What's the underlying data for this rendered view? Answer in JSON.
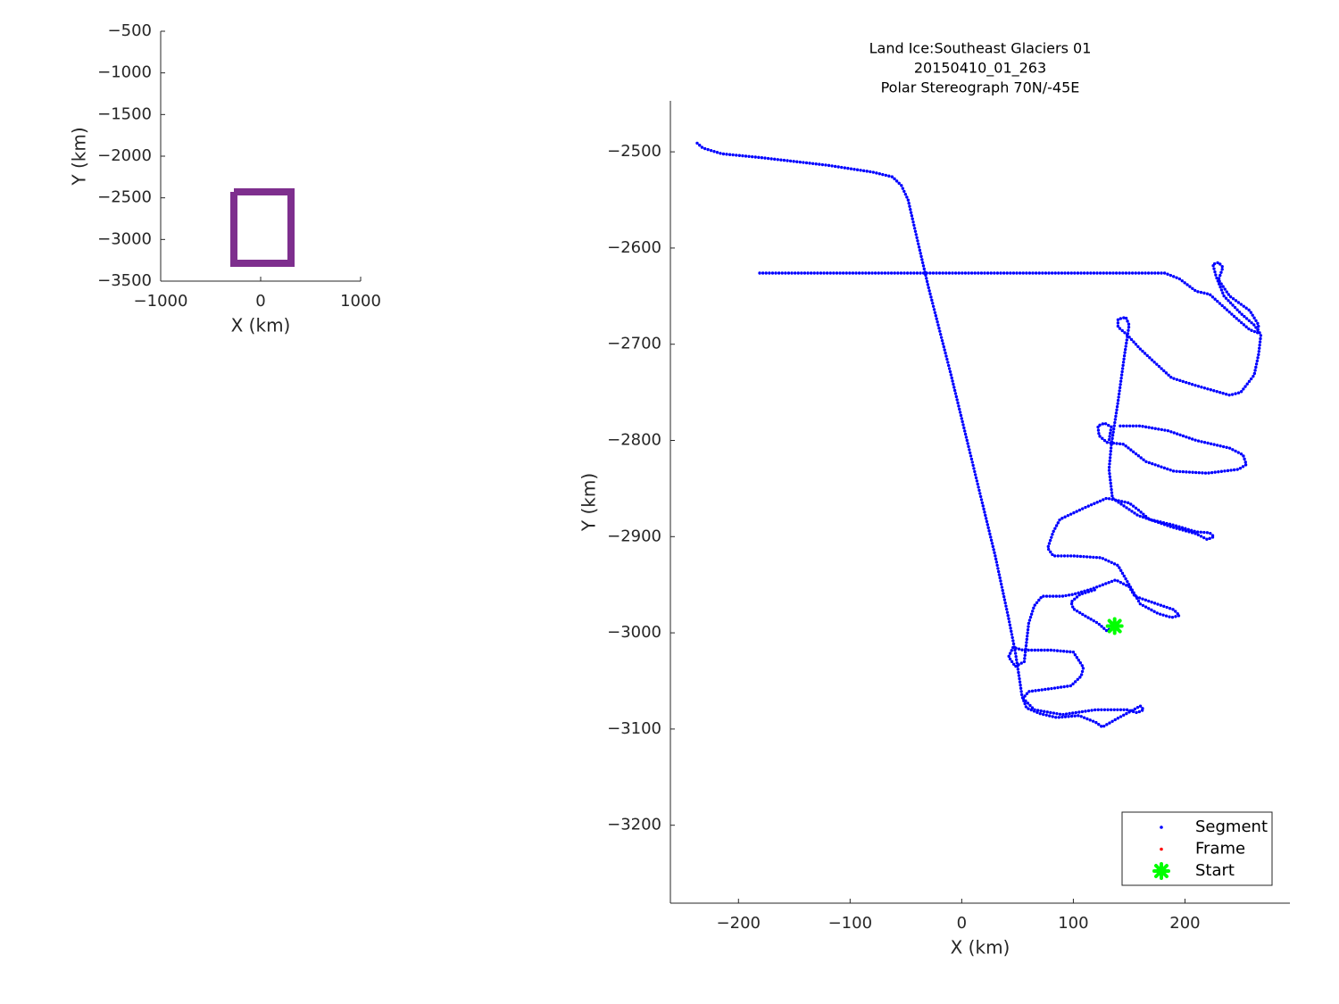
{
  "chart_data": [
    {
      "type": "line",
      "xlabel": "X (km)",
      "ylabel": "Y (km)",
      "xlim": [
        -1000,
        1000
      ],
      "ylim": [
        -3500,
        -500
      ],
      "xticks": [
        {
          "value": -1000,
          "label": "−1000"
        },
        0,
        1000
      ],
      "yticks": [
        {
          "value": -3500,
          "label": "−3500"
        },
        {
          "value": -3000,
          "label": "−3000"
        },
        {
          "value": -2500,
          "label": "−2500"
        },
        {
          "value": -2000,
          "label": "−2000"
        },
        {
          "value": -1500,
          "label": "−1500"
        },
        {
          "value": -1000,
          "label": "−1000"
        },
        {
          "value": -500,
          "label": "−500"
        }
      ],
      "series": [
        {
          "color": "#7e2f8e",
          "x": [
            -268,
            304,
            304,
            -268,
            -268
          ],
          "y": [
            -2429,
            -2429,
            -3286,
            -3286,
            -2429
          ]
        }
      ]
    },
    {
      "type": "scatter",
      "title": [
        "Land Ice:Southeast Glaciers 01",
        "20150410_01_263",
        "Polar Stereograph 70N/-45E"
      ],
      "xlabel": "X (km)",
      "ylabel": "Y (km)",
      "xlim": [
        -261,
        294
      ],
      "ylim": [
        -3281,
        -2447
      ],
      "xticks": [
        {
          "value": -200,
          "label": "−200"
        },
        {
          "value": -100,
          "label": "−100"
        },
        0,
        100,
        200
      ],
      "yticks": [
        {
          "value": -3200,
          "label": "−3200"
        },
        {
          "value": -3100,
          "label": "−3100"
        },
        {
          "value": -3000,
          "label": "−3000"
        },
        {
          "value": -2900,
          "label": "−2900"
        },
        {
          "value": -2800,
          "label": "−2800"
        },
        {
          "value": -2700,
          "label": "−2700"
        },
        {
          "value": -2600,
          "label": "−2600"
        },
        {
          "value": -2500,
          "label": "−2500"
        }
      ],
      "legend": "lower right",
      "series": [
        {
          "name": "Segment",
          "color": "#0000ff",
          "marker": ".",
          "x": [
            -237,
            -232,
            -215,
            -180,
            -120,
            -80,
            -62,
            -54,
            -48,
            -42,
            -30,
            -10,
            10,
            30,
            42,
            48,
            52,
            54,
            58,
            70,
            85,
            105,
            120,
            126,
            138,
            154,
            160,
            163,
            157,
            148,
            120,
            90,
            65,
            55,
            60,
            80,
            98,
            107,
            109,
            100,
            80,
            55,
            46,
            42,
            48,
            56,
            58,
            60,
            65,
            72,
            90,
            100,
            115,
            138,
            150,
            155,
            175,
            190,
            195,
            188,
            176,
            160,
            150,
            140,
            125,
            100,
            82,
            77,
            82,
            88,
            110,
            130,
            150,
            158,
            168,
            190,
            210,
            222,
            226,
            220,
            210,
            188,
            158,
            135,
            132,
            134,
            140,
            146,
            150,
            147,
            140,
            140,
            148,
            160,
            172,
            188,
            210,
            240,
            250,
            262,
            266,
            268,
            262,
            250,
            235,
            228,
            225,
            230,
            234,
            230,
            240,
            258,
            266,
            265,
            258,
            245,
            222,
            210,
            195,
            182,
            100,
            0,
            -100,
            -182,
            null,
            142,
            160,
            185,
            210,
            240,
            252,
            255,
            248,
            220,
            190,
            165,
            145,
            130,
            123,
            122,
            128,
            134,
            132,
            null,
            137,
            130,
            122,
            110,
            100,
            98,
            106,
            120
          ],
          "y": [
            -2491,
            -2496,
            -2502,
            -2506,
            -2514,
            -2521,
            -2526,
            -2535,
            -2550,
            -2580,
            -2640,
            -2730,
            -2825,
            -2920,
            -2985,
            -3020,
            -3050,
            -3066,
            -3078,
            -3084,
            -3088,
            -3086,
            -3093,
            -3098,
            -3090,
            -3080,
            -3076,
            -3080,
            -3083,
            -3080,
            -3080,
            -3085,
            -3080,
            -3068,
            -3061,
            -3058,
            -3055,
            -3045,
            -3036,
            -3020,
            -3018,
            -3018,
            -3015,
            -3025,
            -3035,
            -3030,
            -3010,
            -2990,
            -2972,
            -2962,
            -2962,
            -2960,
            -2955,
            -2945,
            -2952,
            -2962,
            -2970,
            -2976,
            -2982,
            -2984,
            -2980,
            -2970,
            -2950,
            -2930,
            -2922,
            -2920,
            -2920,
            -2912,
            -2895,
            -2882,
            -2870,
            -2860,
            -2865,
            -2872,
            -2882,
            -2888,
            -2895,
            -2896,
            -2900,
            -2903,
            -2897,
            -2890,
            -2878,
            -2860,
            -2830,
            -2805,
            -2760,
            -2710,
            -2680,
            -2672,
            -2674,
            -2682,
            -2690,
            -2705,
            -2718,
            -2735,
            -2743,
            -2753,
            -2750,
            -2732,
            -2710,
            -2690,
            -2680,
            -2668,
            -2650,
            -2630,
            -2617,
            -2615,
            -2620,
            -2633,
            -2650,
            -2665,
            -2680,
            -2688,
            -2685,
            -2672,
            -2648,
            -2645,
            -2632,
            -2626,
            -2626,
            -2626,
            -2626,
            -2626,
            null,
            -2785,
            -2785,
            -2790,
            -2800,
            -2808,
            -2815,
            -2825,
            -2830,
            -2834,
            -2832,
            -2822,
            -2804,
            -2802,
            -2795,
            -2785,
            -2782,
            -2786,
            -2800,
            null,
            -2993,
            -2998,
            -2990,
            -2982,
            -2975,
            -2968,
            -2960,
            -2955
          ]
        },
        {
          "name": "Frame",
          "color": "#ff0000",
          "marker": ".",
          "x": [],
          "y": []
        },
        {
          "name": "Start",
          "color": "#00ff00",
          "marker": "x",
          "x": [
            137
          ],
          "y": [
            -2993
          ]
        }
      ]
    }
  ]
}
